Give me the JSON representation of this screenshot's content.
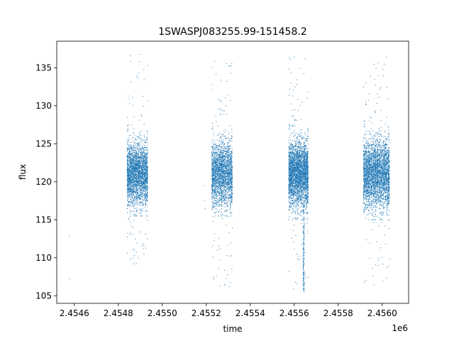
{
  "chart_data": {
    "type": "scatter",
    "title": "1SWASPJ083255.99-151458.2",
    "xlabel": "time",
    "ylabel": "flux",
    "x_offset_label": "1e6",
    "xlim": [
      2454520,
      2456120
    ],
    "ylim": [
      104,
      138.5
    ],
    "x_ticks": [
      2454600,
      2454800,
      2455000,
      2455200,
      2455400,
      2455600,
      2455800,
      2456000
    ],
    "x_tick_labels": [
      "2.4546",
      "2.4548",
      "2.4550",
      "2.4552",
      "2.4554",
      "2.4556",
      "2.4558",
      "2.4560"
    ],
    "y_ticks": [
      105,
      110,
      115,
      120,
      125,
      130,
      135
    ],
    "y_tick_labels": [
      "105",
      "110",
      "115",
      "120",
      "125",
      "130",
      "135"
    ],
    "grid": false,
    "legend": "none",
    "marker_color": "#1f77b4",
    "series": [
      {
        "segments": [
          {
            "x_range": [
              2454840,
              2454935
            ],
            "center": 121,
            "core_range": [
              117,
              126.5
            ],
            "extreme_range": [
              109,
              137
            ],
            "n": 2600
          },
          {
            "x_range": [
              2455225,
              2455320
            ],
            "center": 121,
            "core_range": [
              117,
              127
            ],
            "extreme_range": [
              106,
              136
            ],
            "n": 2200
          },
          {
            "x_range": [
              2455575,
              2455665
            ],
            "center": 121,
            "core_range": [
              116.5,
              126.5
            ],
            "extreme_range": [
              105.5,
              136.5
            ],
            "n": 3000
          },
          {
            "x_range": [
              2455915,
              2456035
            ],
            "center": 121,
            "core_range": [
              116.5,
              127
            ],
            "extreme_range": [
              106,
              136.5
            ],
            "n": 3200
          }
        ],
        "dip": {
          "x": 2455643,
          "min_flux": 105.5
        },
        "isolated_points": [
          {
            "x": 2454578,
            "y": 112.8
          },
          {
            "x": 2454578,
            "y": 107.2
          },
          {
            "x": 2455190,
            "y": 119.5
          },
          {
            "x": 2455192,
            "y": 117.5
          },
          {
            "x": 2455195,
            "y": 116.5
          }
        ]
      }
    ]
  }
}
